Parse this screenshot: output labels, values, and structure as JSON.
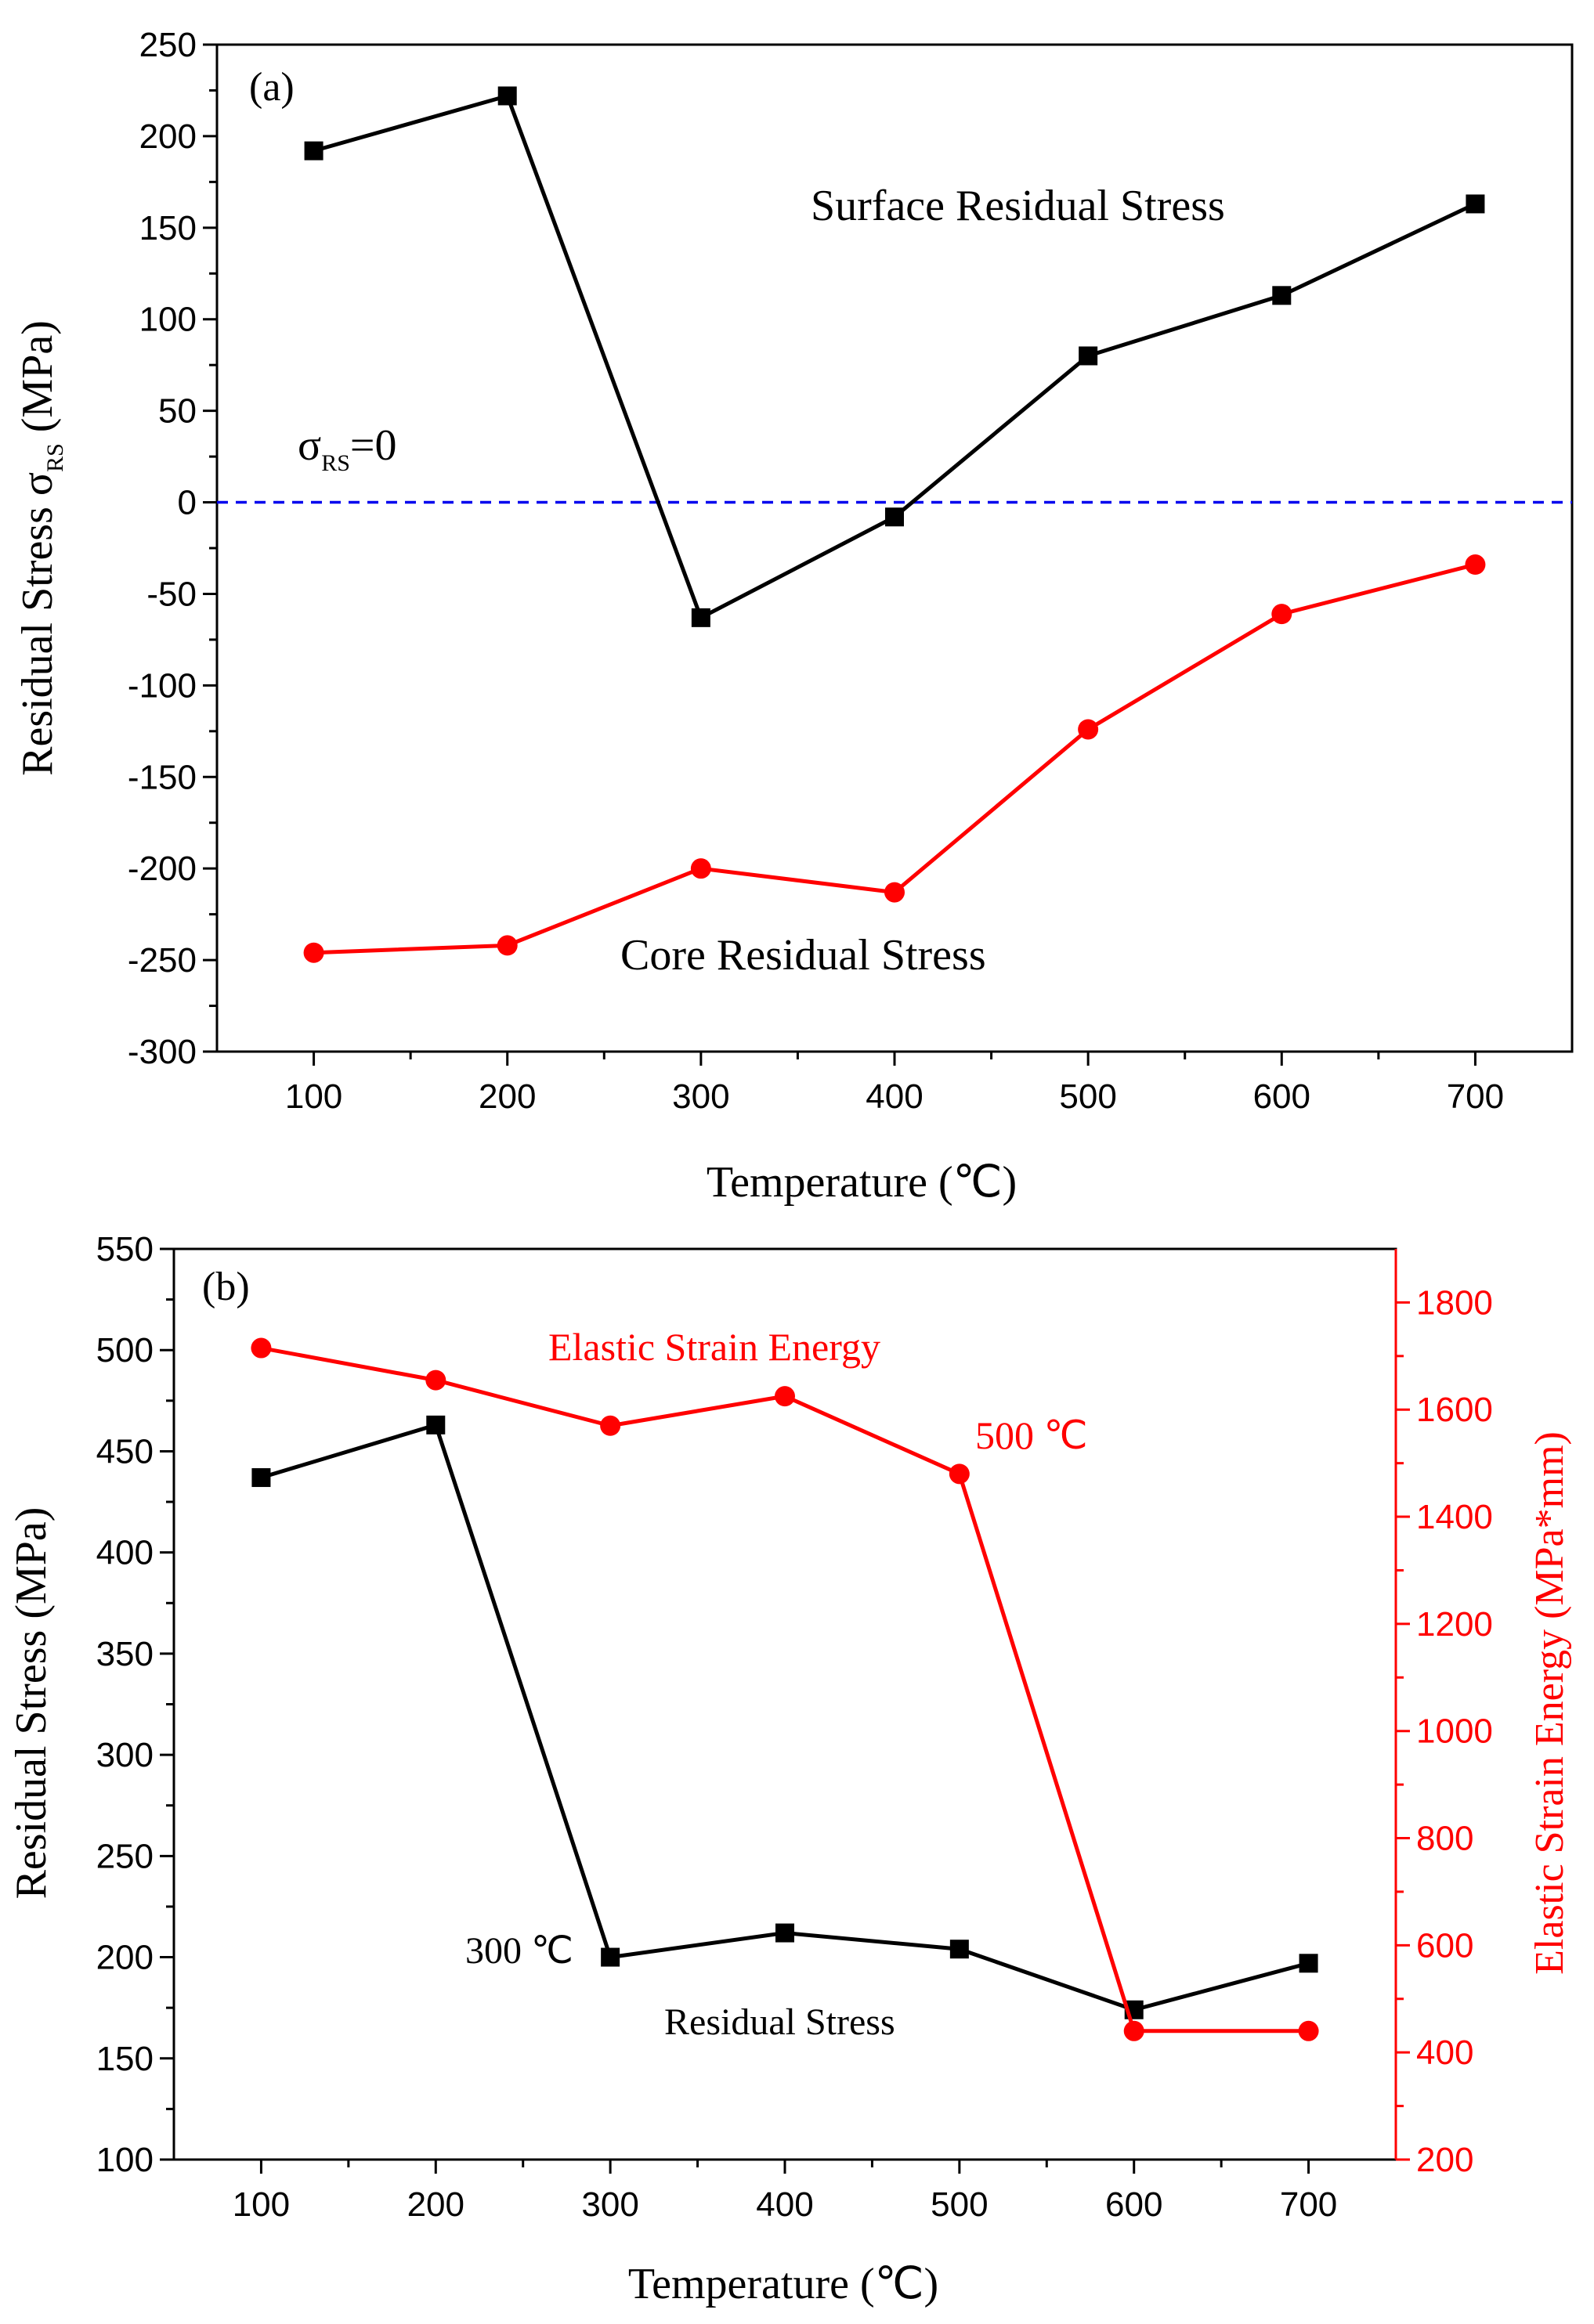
{
  "chart_data": [
    {
      "panel": "(a)",
      "type": "line",
      "categories": [
        "100",
        "200",
        "300",
        "400",
        "500",
        "600",
        "700"
      ],
      "x": [
        100,
        200,
        300,
        400,
        500,
        600,
        700
      ],
      "xlabel": "Temperature (℃)",
      "ylabel": "Residual Stress σ",
      "ylabel_sub": "RS",
      "ylabel_unit": " (MPa)",
      "xlim": [
        50,
        750
      ],
      "ylim": [
        -300,
        250
      ],
      "y_ticks": [
        "-300",
        "-250",
        "-200",
        "-150",
        "-100",
        "-50",
        "0",
        "50",
        "100",
        "150",
        "200",
        "250"
      ],
      "y_tick_values": [
        -300,
        -250,
        -200,
        -150,
        -100,
        -50,
        0,
        50,
        100,
        150,
        200,
        250
      ],
      "reference_line": {
        "y": 0,
        "label": "σ",
        "label_sub": "RS",
        "label_suffix": "=0",
        "color": "#0000ee"
      },
      "series": [
        {
          "name": "Surface Residual Stress",
          "label": "Surface Residual Stress",
          "color": "#000000",
          "marker": "square",
          "values": [
            192,
            222,
            -63,
            -8,
            80,
            113,
            163
          ]
        },
        {
          "name": "Core Residual Stress",
          "label": "Core Residual Stress",
          "color": "#ff0000",
          "marker": "circle",
          "values": [
            -246,
            -242,
            -200,
            -213,
            -124,
            -61,
            -34
          ]
        }
      ]
    },
    {
      "panel": "(b)",
      "type": "line",
      "categories": [
        "100",
        "200",
        "300",
        "400",
        "500",
        "600",
        "700"
      ],
      "x": [
        100,
        200,
        300,
        400,
        500,
        600,
        700
      ],
      "xlabel": "Temperature (℃)",
      "ylabel": "Residual Stress  (MPa)",
      "y2label": "Elastic Strain Energy (MPa*mm)",
      "xlim": [
        50,
        750
      ],
      "ylim": [
        100,
        550
      ],
      "y_ticks": [
        "100",
        "150",
        "200",
        "250",
        "300",
        "350",
        "400",
        "450",
        "500",
        "550"
      ],
      "y_tick_values": [
        100,
        150,
        200,
        250,
        300,
        350,
        400,
        450,
        500,
        550
      ],
      "y2lim": [
        200,
        1900
      ],
      "y2_ticks": [
        "200",
        "400",
        "600",
        "800",
        "1000",
        "1200",
        "1400",
        "1600",
        "1800"
      ],
      "y2_tick_values": [
        200,
        400,
        600,
        800,
        1000,
        1200,
        1400,
        1600,
        1800
      ],
      "annotations": [
        {
          "text": "300 ℃",
          "x": 300,
          "y": 200,
          "color": "#000000"
        },
        {
          "text": "500 ℃",
          "x": 500,
          "y2": 1480,
          "color": "#ff0000"
        }
      ],
      "series": [
        {
          "name": "Residual Stress",
          "label": "Residual Stress",
          "axis": "left",
          "color": "#000000",
          "marker": "square",
          "values": [
            437,
            463,
            200,
            212,
            204,
            174,
            197
          ]
        },
        {
          "name": "Elastic Strain Energy",
          "label": "Elastic Strain Energy",
          "axis": "right",
          "color": "#ff0000",
          "marker": "circle",
          "values": [
            1715,
            1655,
            1570,
            1625,
            1480,
            440,
            440
          ]
        }
      ]
    }
  ]
}
